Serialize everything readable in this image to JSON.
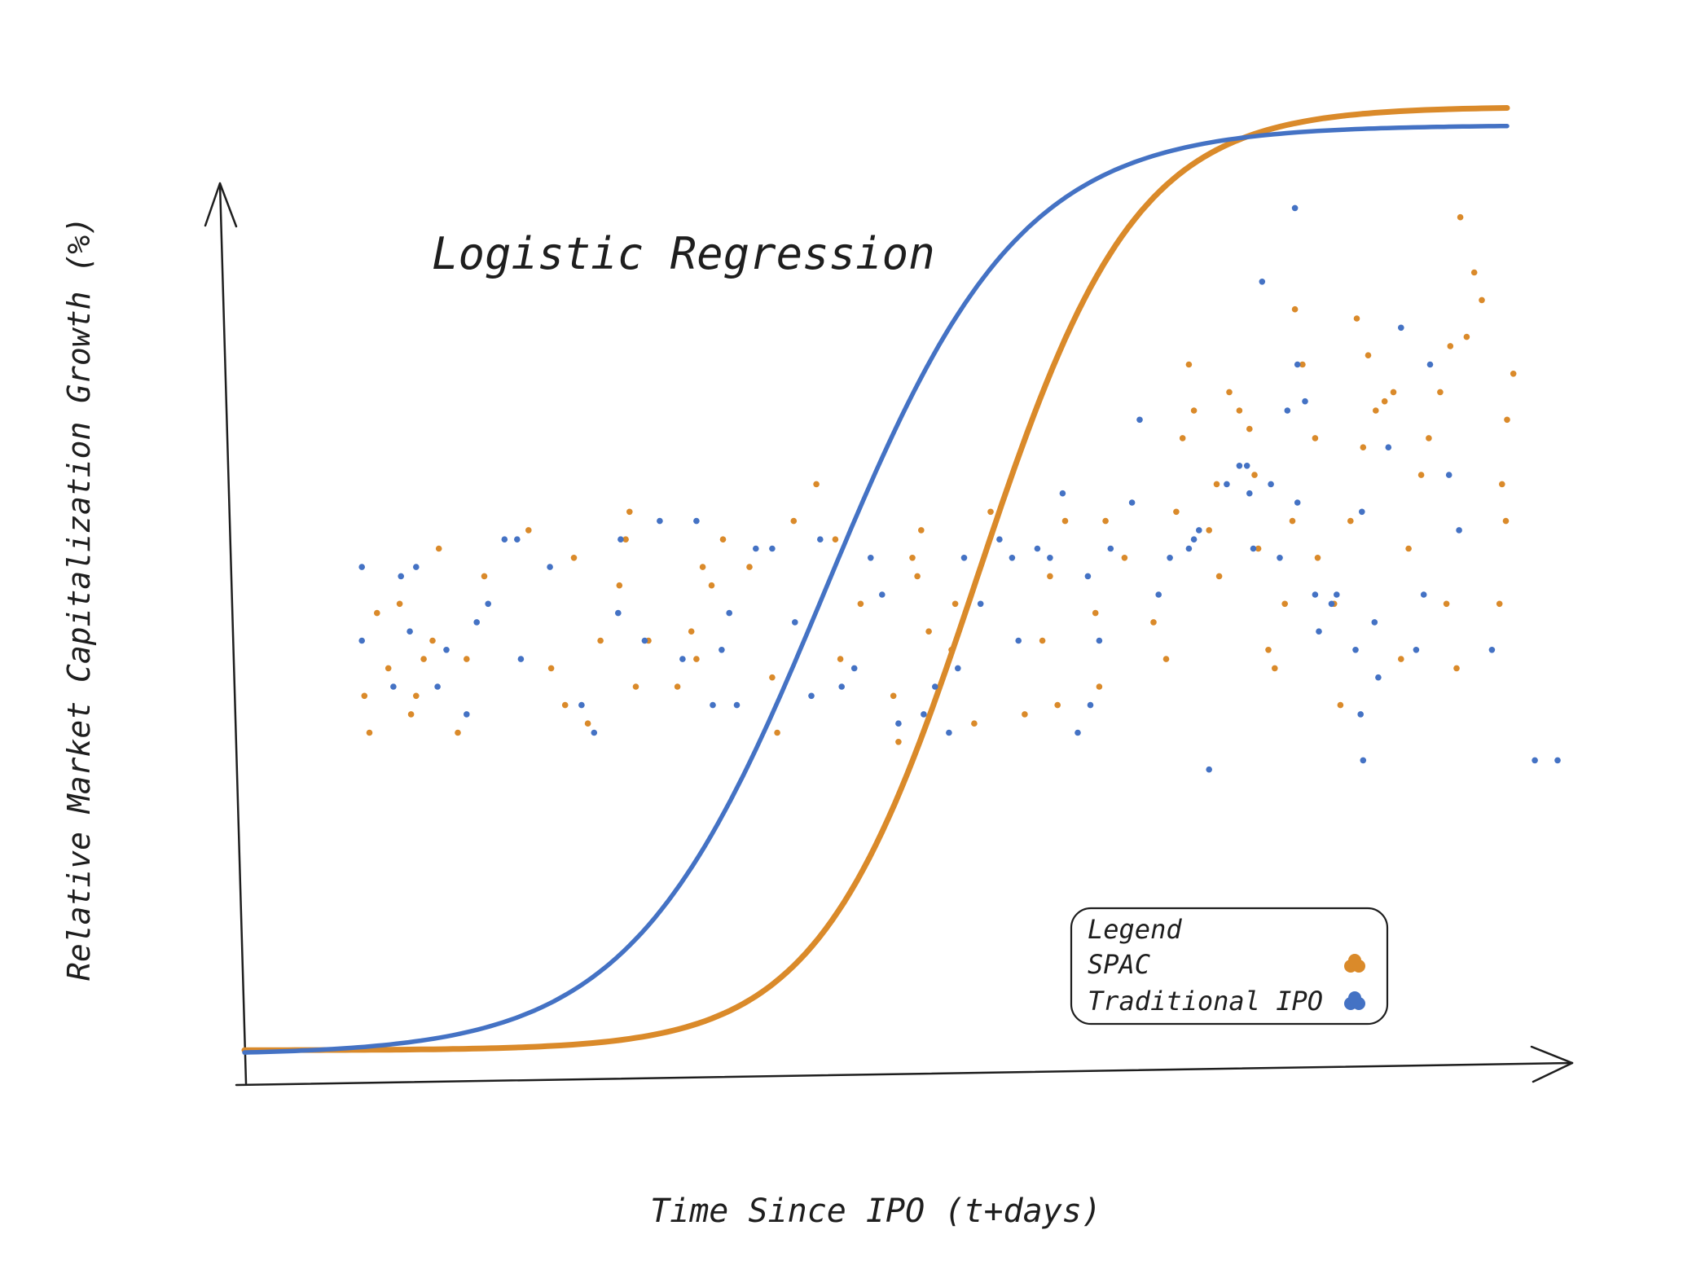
{
  "chart_data": {
    "type": "scatter",
    "title": "Logistic Regression",
    "xlabel": "Time Since IPO (t+days)",
    "ylabel": "Relative Market Capitalization Growth (%)",
    "xlim": [
      0,
      100
    ],
    "ylim": [
      0,
      100
    ],
    "grid": false,
    "legend": {
      "title": "Legend",
      "placement": "bottom-right"
    },
    "series": [
      {
        "name": "SPAC",
        "color": "#da8a2a",
        "points": [
          [
            9.5,
            39
          ],
          [
            9.9,
            35
          ],
          [
            10.5,
            48
          ],
          [
            11.4,
            42
          ],
          [
            12.3,
            49
          ],
          [
            13.2,
            37
          ],
          [
            13.6,
            39
          ],
          [
            14.2,
            43
          ],
          [
            14.9,
            45
          ],
          [
            15.4,
            55
          ],
          [
            16.9,
            35
          ],
          [
            17.6,
            43
          ],
          [
            19.0,
            52
          ],
          [
            22.5,
            57
          ],
          [
            24.3,
            42
          ],
          [
            25.4,
            38
          ],
          [
            26.1,
            54
          ],
          [
            27.2,
            36
          ],
          [
            28.2,
            45
          ],
          [
            29.7,
            51
          ],
          [
            30.2,
            56
          ],
          [
            30.5,
            59
          ],
          [
            31.0,
            40
          ],
          [
            32.0,
            45
          ],
          [
            34.3,
            40
          ],
          [
            35.4,
            46
          ],
          [
            35.8,
            43
          ],
          [
            36.3,
            53
          ],
          [
            37.0,
            51
          ],
          [
            37.9,
            56
          ],
          [
            40.0,
            53
          ],
          [
            41.8,
            41
          ],
          [
            42.2,
            35
          ],
          [
            43.5,
            58
          ],
          [
            45.3,
            62
          ],
          [
            46.8,
            56
          ],
          [
            47.2,
            43
          ],
          [
            48.8,
            49
          ],
          [
            51.4,
            39
          ],
          [
            51.8,
            34
          ],
          [
            52.9,
            54
          ],
          [
            53.6,
            57
          ],
          [
            53.3,
            52
          ],
          [
            54.2,
            46
          ],
          [
            56.0,
            44
          ],
          [
            56.3,
            49
          ],
          [
            57.8,
            36
          ],
          [
            59.1,
            59
          ],
          [
            61.8,
            37
          ],
          [
            63.2,
            45
          ],
          [
            63.8,
            52
          ],
          [
            65.0,
            58
          ],
          [
            64.4,
            38
          ],
          [
            67.4,
            48
          ],
          [
            67.7,
            40
          ],
          [
            68.2,
            58
          ],
          [
            69.7,
            54
          ],
          [
            72.0,
            47
          ],
          [
            73.0,
            43
          ],
          [
            73.8,
            59
          ],
          [
            74.3,
            67
          ],
          [
            74.8,
            75
          ],
          [
            75.2,
            70
          ],
          [
            76.4,
            57
          ],
          [
            77.0,
            62
          ],
          [
            77.2,
            52
          ],
          [
            78.0,
            72
          ],
          [
            78.8,
            70
          ],
          [
            79.6,
            68
          ],
          [
            80.0,
            63
          ],
          [
            80.3,
            55
          ],
          [
            81.1,
            44
          ],
          [
            81.6,
            42
          ],
          [
            82.4,
            49
          ],
          [
            83.0,
            58
          ],
          [
            83.2,
            81
          ],
          [
            83.8,
            75
          ],
          [
            84.8,
            67
          ],
          [
            85.0,
            54
          ],
          [
            86.3,
            49
          ],
          [
            86.8,
            38
          ],
          [
            87.6,
            58
          ],
          [
            88.1,
            80
          ],
          [
            88.6,
            66
          ],
          [
            89.0,
            76
          ],
          [
            89.6,
            70
          ],
          [
            90.3,
            71
          ],
          [
            91.0,
            72
          ],
          [
            91.6,
            43
          ],
          [
            92.2,
            55
          ],
          [
            93.2,
            63
          ],
          [
            93.8,
            67
          ],
          [
            94.7,
            72
          ],
          [
            95.2,
            49
          ],
          [
            95.5,
            77
          ],
          [
            96.0,
            42
          ],
          [
            96.3,
            91
          ],
          [
            96.8,
            78
          ],
          [
            97.4,
            85
          ],
          [
            98.0,
            82
          ],
          [
            99.4,
            49
          ],
          [
            99.6,
            62
          ],
          [
            99.9,
            58
          ],
          [
            100.0,
            69
          ],
          [
            100.5,
            74
          ]
        ]
      },
      {
        "name": "Traditional IPO",
        "color": "#4472c4",
        "points": [
          [
            9.3,
            53
          ],
          [
            9.3,
            45
          ],
          [
            11.8,
            40
          ],
          [
            12.4,
            52
          ],
          [
            13.1,
            46
          ],
          [
            13.6,
            53
          ],
          [
            15.3,
            40
          ],
          [
            16.0,
            44
          ],
          [
            17.6,
            37
          ],
          [
            18.4,
            47
          ],
          [
            19.3,
            49
          ],
          [
            20.6,
            56
          ],
          [
            21.6,
            56
          ],
          [
            21.9,
            43
          ],
          [
            24.2,
            53
          ],
          [
            26.7,
            38
          ],
          [
            27.7,
            35
          ],
          [
            29.6,
            48
          ],
          [
            29.8,
            56
          ],
          [
            31.7,
            45
          ],
          [
            32.9,
            58
          ],
          [
            34.7,
            43
          ],
          [
            35.8,
            58
          ],
          [
            37.1,
            38
          ],
          [
            37.8,
            44
          ],
          [
            38.4,
            48
          ],
          [
            39.0,
            38
          ],
          [
            40.5,
            55
          ],
          [
            41.8,
            55
          ],
          [
            43.6,
            47
          ],
          [
            44.9,
            39
          ],
          [
            45.6,
            56
          ],
          [
            47.3,
            40
          ],
          [
            48.3,
            42
          ],
          [
            49.6,
            54
          ],
          [
            50.5,
            50
          ],
          [
            51.8,
            36
          ],
          [
            53.8,
            37
          ],
          [
            54.7,
            40
          ],
          [
            55.8,
            35
          ],
          [
            56.5,
            42
          ],
          [
            57.0,
            54
          ],
          [
            58.3,
            49
          ],
          [
            59.8,
            56
          ],
          [
            60.8,
            54
          ],
          [
            61.3,
            45
          ],
          [
            62.8,
            55
          ],
          [
            63.8,
            54
          ],
          [
            64.8,
            61
          ],
          [
            66.0,
            35
          ],
          [
            66.8,
            52
          ],
          [
            67.0,
            38
          ],
          [
            67.7,
            45
          ],
          [
            68.6,
            55
          ],
          [
            70.3,
            60
          ],
          [
            70.9,
            69
          ],
          [
            72.4,
            50
          ],
          [
            73.3,
            54
          ],
          [
            74.8,
            55
          ],
          [
            75.2,
            56
          ],
          [
            75.6,
            57
          ],
          [
            76.4,
            31
          ],
          [
            77.8,
            62
          ],
          [
            78.8,
            64
          ],
          [
            79.4,
            64
          ],
          [
            79.6,
            61
          ],
          [
            79.9,
            55
          ],
          [
            80.6,
            84
          ],
          [
            81.3,
            62
          ],
          [
            82.0,
            54
          ],
          [
            82.6,
            70
          ],
          [
            83.4,
            75
          ],
          [
            83.2,
            92
          ],
          [
            83.4,
            60
          ],
          [
            84.0,
            71
          ],
          [
            84.8,
            50
          ],
          [
            85.1,
            46
          ],
          [
            86.1,
            49
          ],
          [
            86.5,
            50
          ],
          [
            88.0,
            44
          ],
          [
            88.4,
            37
          ],
          [
            88.5,
            59
          ],
          [
            88.6,
            32
          ],
          [
            89.5,
            47
          ],
          [
            89.8,
            41
          ],
          [
            90.6,
            66
          ],
          [
            91.6,
            79
          ],
          [
            92.8,
            44
          ],
          [
            93.4,
            50
          ],
          [
            93.9,
            75
          ],
          [
            95.4,
            63
          ],
          [
            96.2,
            57
          ],
          [
            98.8,
            44
          ],
          [
            102.2,
            32
          ],
          [
            104.0,
            32
          ]
        ]
      }
    ],
    "fits": [
      {
        "series": "SPAC",
        "type": "logistic",
        "midpoint_x": 58,
        "growth_rate": 0.16,
        "upper": 103,
        "lower": 0.5
      },
      {
        "series": "Traditional IPO",
        "type": "logistic",
        "midpoint_x": 46,
        "growth_rate": 0.13,
        "upper": 101,
        "lower": 0
      }
    ]
  }
}
